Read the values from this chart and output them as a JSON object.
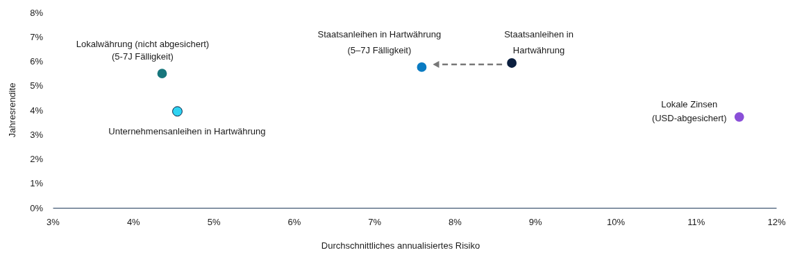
{
  "chart_data": {
    "type": "scatter",
    "xlabel": "Durchschnittliches annualisiertes Risiko",
    "ylabel": "Jahresrendite",
    "xlim": [
      3,
      12
    ],
    "xticks": [
      {
        "value": 3,
        "label": "3%"
      },
      {
        "value": 4,
        "label": "4%"
      },
      {
        "value": 5,
        "label": "5%"
      },
      {
        "value": 6,
        "label": "6%"
      },
      {
        "value": 7,
        "label": "7%"
      },
      {
        "value": 8,
        "label": "8%"
      },
      {
        "value": 9,
        "label": "9%"
      },
      {
        "value": 10,
        "label": "10%"
      },
      {
        "value": 11,
        "label": "11%"
      },
      {
        "value": 12,
        "label": "12%"
      }
    ],
    "ylim": [
      0,
      8
    ],
    "yticks": [
      {
        "value": 0,
        "label": "0%"
      },
      {
        "value": 1,
        "label": "1%"
      },
      {
        "value": 2,
        "label": "2%"
      },
      {
        "value": 3,
        "label": "3%"
      },
      {
        "value": 4,
        "label": "4%"
      },
      {
        "value": 5,
        "label": "5%"
      },
      {
        "value": 6,
        "label": "6%"
      },
      {
        "value": 7,
        "label": "7%"
      },
      {
        "value": 8,
        "label": "8%"
      }
    ],
    "grid": false,
    "marker": "circle",
    "series": [
      {
        "name": "Lokalwährung (nicht abgesichert)\n(5-7J Fälligkeit)",
        "color": "#17767c",
        "x": [
          4.36
        ],
        "values": [
          5.5
        ]
      },
      {
        "name": "Unternehmensanleihen in Hartwährung",
        "color": "#2fd3f2",
        "x": [
          4.55
        ],
        "values": [
          3.95
        ]
      },
      {
        "name": "Staatsanleihen in Hartwährung\n(5–7J Fälligkeit)",
        "color": "#0a7bc2",
        "x": [
          7.59
        ],
        "values": [
          5.76
        ]
      },
      {
        "name": "Staatsanleihen in\nHartwährung",
        "color": "#0b1f3f",
        "x": [
          8.71
        ],
        "values": [
          5.93
        ]
      },
      {
        "name": "Lokale Zinsen\n(USD-abgesichert)",
        "color": "#8a4fd8",
        "x": [
          11.54
        ],
        "values": [
          3.72
        ]
      }
    ]
  }
}
